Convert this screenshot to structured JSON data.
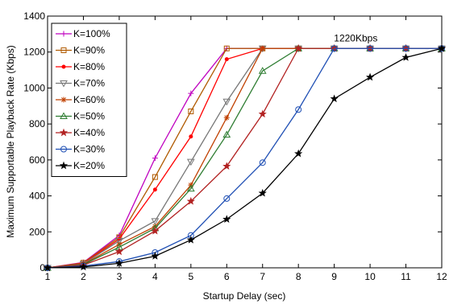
{
  "chart_data": {
    "type": "line",
    "xlabel": "Startup Delay (sec)",
    "ylabel": "Maximum Supportable Playback Rate (Kbps)",
    "xlim": [
      1,
      12
    ],
    "ylim": [
      0,
      1400
    ],
    "xticks": [
      1,
      2,
      3,
      4,
      5,
      6,
      7,
      8,
      9,
      10,
      11,
      12
    ],
    "yticks": [
      0,
      200,
      400,
      600,
      800,
      1000,
      1200,
      1400
    ],
    "grid": false,
    "legend_position": "top-left",
    "annotation": {
      "text": "1220Kbps",
      "x": 9.6,
      "y": 1260
    },
    "x": [
      1,
      2,
      3,
      4,
      5,
      6,
      7,
      8,
      9,
      10,
      11,
      12
    ],
    "series": [
      {
        "name": "K=100%",
        "color": "#bf00bf",
        "marker": "plus",
        "values": [
          0,
          30,
          180,
          610,
          970,
          1220,
          1220,
          1220,
          1220,
          1220,
          1220,
          1220
        ]
      },
      {
        "name": "K=90%",
        "color": "#b05a00",
        "marker": "square",
        "values": [
          0,
          28,
          170,
          505,
          870,
          1220,
          1220,
          1220,
          1220,
          1220,
          1220,
          1220
        ]
      },
      {
        "name": "K=80%",
        "color": "#ff0000",
        "marker": "dot",
        "values": [
          0,
          25,
          160,
          435,
          730,
          1160,
          1220,
          1220,
          1220,
          1220,
          1220,
          1220
        ]
      },
      {
        "name": "K=70%",
        "color": "#777777",
        "marker": "triangle-down",
        "values": [
          0,
          22,
          150,
          260,
          590,
          925,
          1220,
          1220,
          1220,
          1220,
          1220,
          1220
        ]
      },
      {
        "name": "K=60%",
        "color": "#c04000",
        "marker": "asterisk",
        "values": [
          0,
          20,
          130,
          230,
          460,
          835,
          1220,
          1220,
          1220,
          1220,
          1220,
          1220
        ]
      },
      {
        "name": "K=50%",
        "color": "#2e7d32",
        "marker": "triangle-up",
        "values": [
          0,
          18,
          115,
          220,
          440,
          740,
          1095,
          1220,
          1220,
          1220,
          1220,
          1220
        ]
      },
      {
        "name": "K=40%",
        "color": "#b22222",
        "marker": "star",
        "values": [
          0,
          15,
          90,
          205,
          370,
          565,
          855,
          1220,
          1220,
          1220,
          1220,
          1220
        ]
      },
      {
        "name": "K=30%",
        "color": "#1f4fb4",
        "marker": "circle",
        "values": [
          0,
          10,
          35,
          85,
          180,
          385,
          585,
          880,
          1220,
          1220,
          1220,
          1220
        ]
      },
      {
        "name": "K=20%",
        "color": "#000000",
        "marker": "star-filled",
        "values": [
          0,
          5,
          25,
          65,
          155,
          270,
          415,
          635,
          940,
          1060,
          1170,
          1220
        ]
      }
    ]
  }
}
